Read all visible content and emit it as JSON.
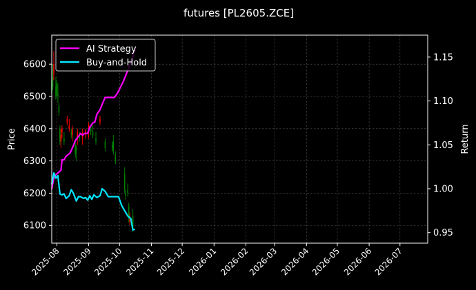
{
  "chart_data": {
    "type": "line",
    "title": "futures [PL2605.ZCE]",
    "ylabel": "Price",
    "y2label": "Return",
    "x_range": [
      "2025-07-27",
      "2026-07-28"
    ],
    "ylim": [
      6045,
      6690
    ],
    "y2lim": [
      0.938,
      1.175
    ],
    "x_ticks": [
      "2025-08",
      "2025-09",
      "2025-10",
      "2025-11",
      "2025-12",
      "2026-01",
      "2026-02",
      "2026-03",
      "2026-04",
      "2026-05",
      "2026-06",
      "2026-07"
    ],
    "y_ticks": [
      6100,
      6200,
      6300,
      6400,
      6500,
      6600
    ],
    "y2_ticks": [
      "0.95",
      "1.00",
      "1.05",
      "1.10",
      "1.15"
    ],
    "grid": true,
    "legend_position": "top-left",
    "colors": {
      "up": "#ff0000",
      "down": "#008000",
      "ai": "#ff00ff",
      "bh": "#00e5ff",
      "grid": "#555555",
      "axes": "#ffffff"
    },
    "series": [
      {
        "name": "AI Strategy",
        "axis": "right",
        "color": "#ff00ff",
        "points": [
          [
            "2025-07-27",
            1.0
          ],
          [
            "2025-07-29",
            1.012
          ],
          [
            "2025-07-31",
            1.016
          ],
          [
            "2025-08-03",
            1.019
          ],
          [
            "2025-08-05",
            1.021
          ],
          [
            "2025-08-06",
            1.033
          ],
          [
            "2025-08-08",
            1.033
          ],
          [
            "2025-08-10",
            1.037
          ],
          [
            "2025-08-12",
            1.039
          ],
          [
            "2025-08-14",
            1.041
          ],
          [
            "2025-08-17",
            1.049
          ],
          [
            "2025-08-19",
            1.055
          ],
          [
            "2025-08-21",
            1.058
          ],
          [
            "2025-08-24",
            1.063
          ],
          [
            "2025-08-26",
            1.061
          ],
          [
            "2025-08-28",
            1.063
          ],
          [
            "2025-08-31",
            1.063
          ],
          [
            "2025-09-02",
            1.07
          ],
          [
            "2025-09-05",
            1.075
          ],
          [
            "2025-09-07",
            1.076
          ],
          [
            "2025-09-09",
            1.085
          ],
          [
            "2025-09-12",
            1.09
          ],
          [
            "2025-09-14",
            1.096
          ],
          [
            "2025-09-17",
            1.104
          ],
          [
            "2025-09-20",
            1.104
          ],
          [
            "2025-09-26",
            1.104
          ],
          [
            "2025-09-29",
            1.109
          ],
          [
            "2025-10-02",
            1.116
          ],
          [
            "2025-10-05",
            1.123
          ],
          [
            "2025-10-08",
            1.132
          ],
          [
            "2025-10-10",
            1.138
          ],
          [
            "2025-10-13",
            1.147
          ],
          [
            "2025-10-15",
            1.155
          ],
          [
            "2025-10-17",
            1.162
          ]
        ]
      },
      {
        "name": "Buy-and-Hold",
        "axis": "right",
        "color": "#00e5ff",
        "points": [
          [
            "2025-07-27",
            1.005
          ],
          [
            "2025-07-29",
            1.018
          ],
          [
            "2025-07-31",
            1.012
          ],
          [
            "2025-08-02",
            1.015
          ],
          [
            "2025-08-04",
            0.994
          ],
          [
            "2025-08-06",
            0.993
          ],
          [
            "2025-08-08",
            0.994
          ],
          [
            "2025-08-10",
            0.989
          ],
          [
            "2025-08-13",
            0.992
          ],
          [
            "2025-08-15",
            0.999
          ],
          [
            "2025-08-17",
            0.995
          ],
          [
            "2025-08-20",
            0.986
          ],
          [
            "2025-08-22",
            0.991
          ],
          [
            "2025-08-24",
            0.991
          ],
          [
            "2025-08-27",
            0.989
          ],
          [
            "2025-08-29",
            0.99
          ],
          [
            "2025-08-31",
            0.987
          ],
          [
            "2025-09-02",
            0.992
          ],
          [
            "2025-09-04",
            0.988
          ],
          [
            "2025-09-06",
            0.993
          ],
          [
            "2025-09-09",
            0.99
          ],
          [
            "2025-09-12",
            0.992
          ],
          [
            "2025-09-14",
            1.0
          ],
          [
            "2025-09-17",
            0.997
          ],
          [
            "2025-09-20",
            0.991
          ],
          [
            "2025-09-30",
            0.991
          ],
          [
            "2025-10-03",
            0.981
          ],
          [
            "2025-10-06",
            0.975
          ],
          [
            "2025-10-09",
            0.969
          ],
          [
            "2025-10-12",
            0.966
          ],
          [
            "2025-10-14",
            0.953
          ],
          [
            "2025-10-16",
            0.954
          ]
        ]
      }
    ],
    "candles": [
      [
        "2025-07-27",
        6550,
        6580,
        6500,
        6510
      ],
      [
        "2025-07-28",
        6560,
        6600,
        6520,
        6530
      ],
      [
        "2025-07-29",
        6570,
        6640,
        6550,
        6600
      ],
      [
        "2025-07-31",
        6530,
        6560,
        6490,
        6500
      ],
      [
        "2025-08-01",
        6540,
        6550,
        6500,
        6510
      ],
      [
        "2025-08-02",
        6510,
        6540,
        6480,
        6500
      ],
      [
        "2025-08-03",
        6470,
        6480,
        6440,
        6450
      ],
      [
        "2025-08-04",
        6400,
        6410,
        6350,
        6360
      ],
      [
        "2025-08-05",
        6360,
        6400,
        6340,
        6380
      ],
      [
        "2025-08-06",
        6390,
        6410,
        6370,
        6400
      ],
      [
        "2025-08-08",
        6370,
        6390,
        6350,
        6360
      ],
      [
        "2025-08-11",
        6420,
        6440,
        6410,
        6430
      ],
      [
        "2025-08-13",
        6400,
        6430,
        6390,
        6410
      ],
      [
        "2025-08-15",
        6390,
        6400,
        6370,
        6380
      ],
      [
        "2025-08-16",
        6380,
        6410,
        6360,
        6400
      ],
      [
        "2025-08-19",
        6350,
        6370,
        6310,
        6320
      ],
      [
        "2025-08-20",
        6340,
        6350,
        6300,
        6330
      ],
      [
        "2025-08-21",
        6370,
        6400,
        6350,
        6390
      ],
      [
        "2025-08-23",
        6380,
        6390,
        6360,
        6370
      ],
      [
        "2025-08-26",
        6370,
        6400,
        6350,
        6390
      ],
      [
        "2025-08-29",
        6380,
        6400,
        6370,
        6395
      ],
      [
        "2025-09-01",
        6390,
        6420,
        6370,
        6410
      ],
      [
        "2025-09-03",
        6400,
        6410,
        6380,
        6390
      ],
      [
        "2025-09-05",
        6390,
        6410,
        6370,
        6380
      ],
      [
        "2025-09-08",
        6370,
        6390,
        6350,
        6360
      ],
      [
        "2025-09-12",
        6420,
        6440,
        6410,
        6430
      ],
      [
        "2025-09-17",
        6360,
        6370,
        6330,
        6340
      ],
      [
        "2025-09-24",
        6350,
        6360,
        6330,
        6340
      ],
      [
        "2025-09-25",
        6360,
        6380,
        6320,
        6330
      ],
      [
        "2025-09-27",
        6320,
        6330,
        6290,
        6300
      ],
      [
        "2025-10-06",
        6260,
        6280,
        6200,
        6210
      ],
      [
        "2025-10-07",
        6200,
        6210,
        6180,
        6190
      ],
      [
        "2025-10-09",
        6210,
        6230,
        6190,
        6200
      ],
      [
        "2025-10-10",
        6160,
        6170,
        6110,
        6120
      ],
      [
        "2025-10-11",
        6110,
        6140,
        6100,
        6120
      ],
      [
        "2025-10-14",
        6130,
        6150,
        6080,
        6090
      ]
    ]
  }
}
